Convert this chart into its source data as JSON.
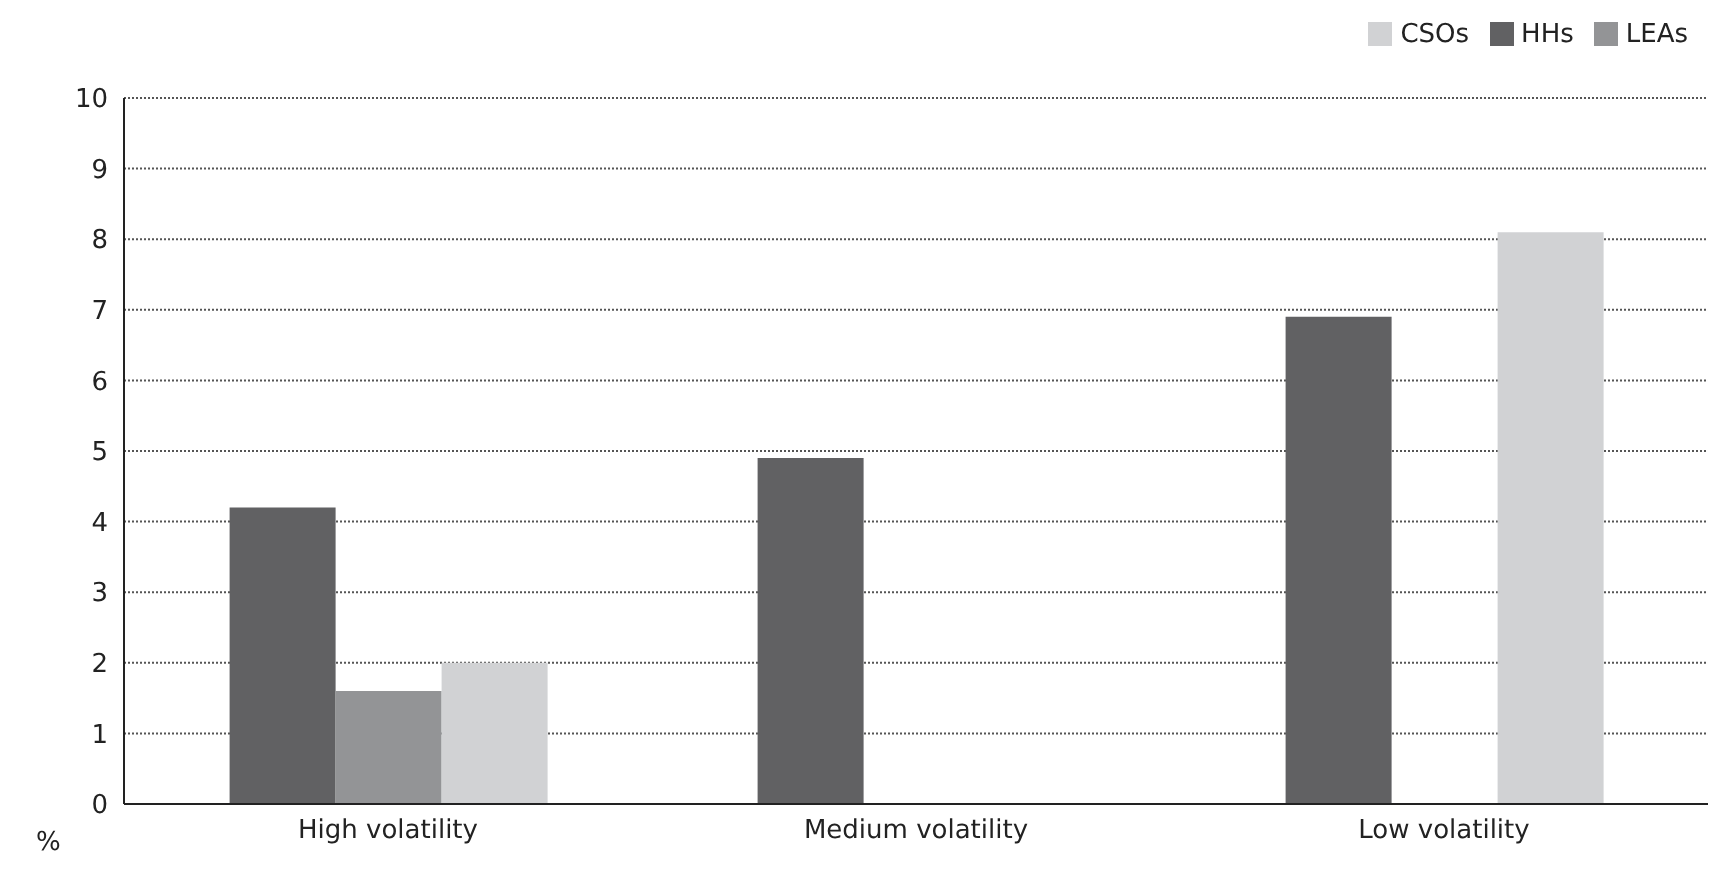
{
  "chart_data": {
    "type": "bar",
    "ylabel": "%",
    "categories": [
      "High volatility",
      "Medium volatility",
      "Low volatility"
    ],
    "series": [
      {
        "name": "HHs",
        "color": "#616163",
        "values": [
          4.2,
          4.9,
          6.9
        ]
      },
      {
        "name": "LEAs",
        "color": "#939496",
        "values": [
          1.6,
          0,
          0
        ]
      },
      {
        "name": "CSOs",
        "color": "#d1d2d4",
        "values": [
          2.0,
          0,
          8.1
        ]
      }
    ],
    "ylim": [
      0,
      10
    ],
    "yticks": [
      0,
      1,
      2,
      3,
      4,
      5,
      6,
      7,
      8,
      9,
      10
    ],
    "grid": "y",
    "legend": "top right"
  }
}
